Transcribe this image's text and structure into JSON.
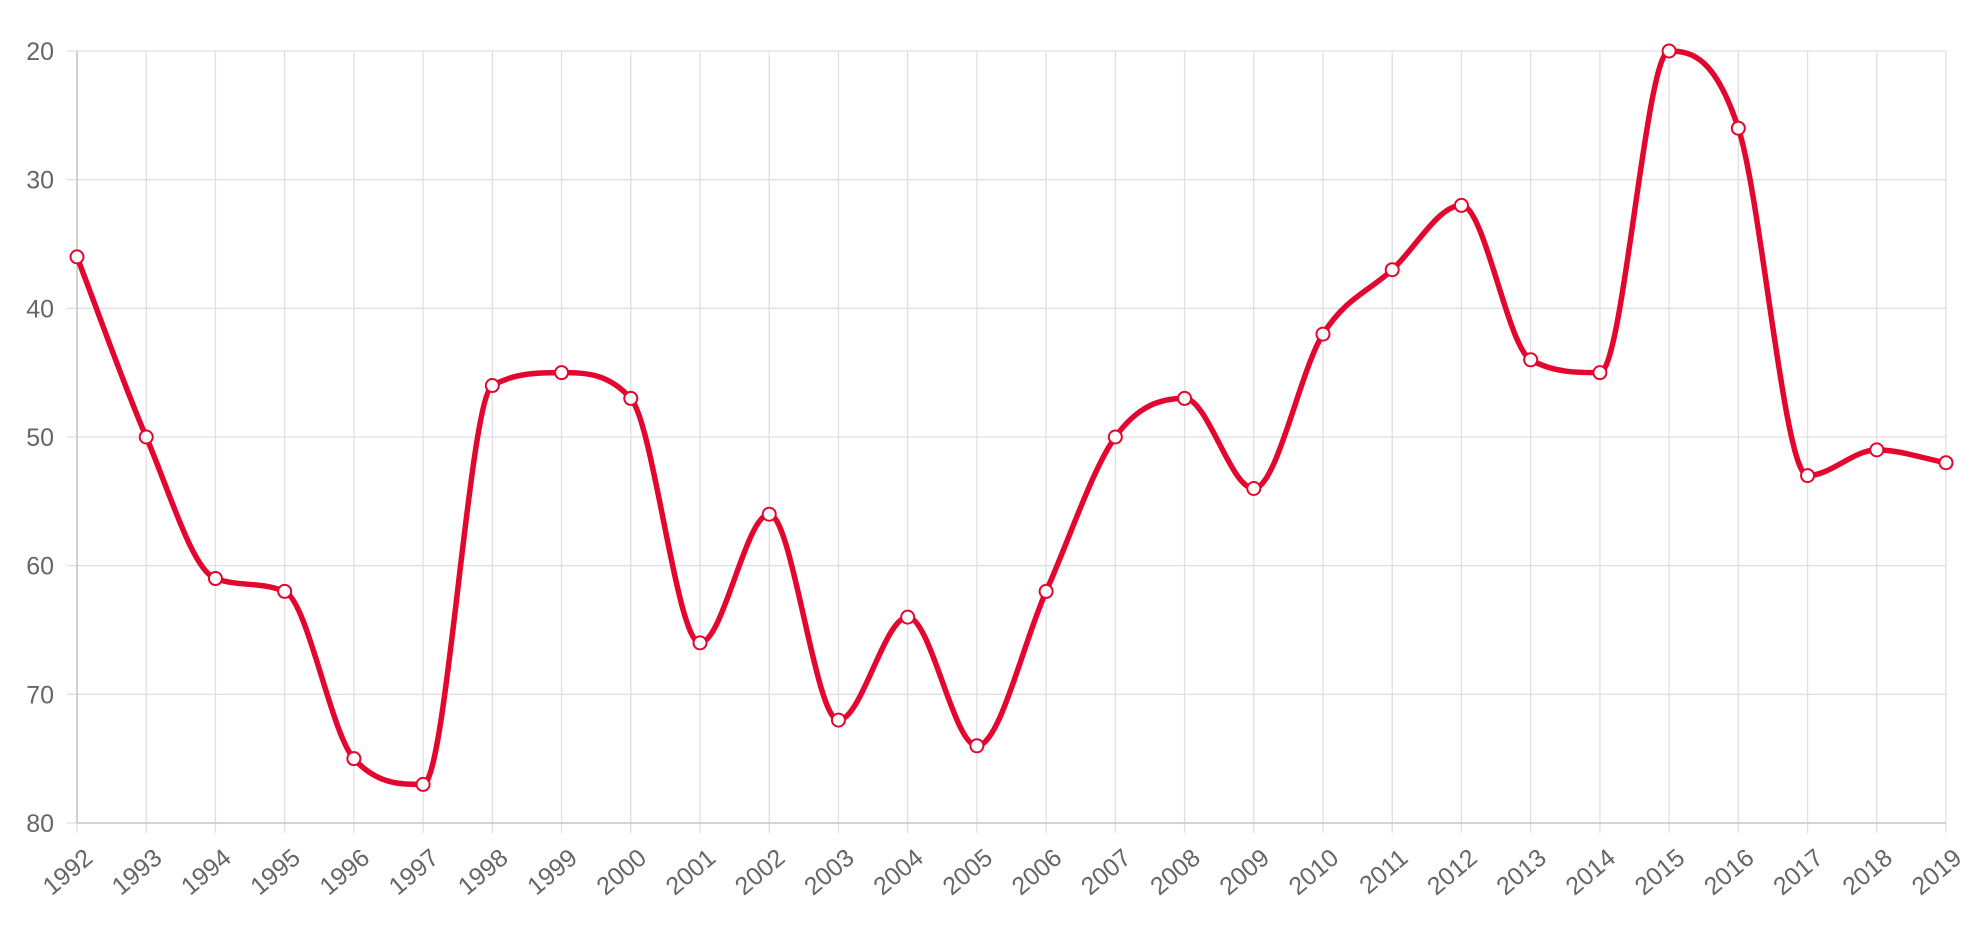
{
  "chart_data": {
    "type": "line",
    "title": "",
    "xlabel": "",
    "ylabel": "",
    "y_axis_reversed": true,
    "ylim": [
      20,
      80
    ],
    "yticks": [
      20,
      30,
      40,
      50,
      60,
      70,
      80
    ],
    "categories": [
      "1992",
      "1993",
      "1994",
      "1995",
      "1996",
      "1997",
      "1998",
      "1999",
      "2000",
      "2001",
      "2002",
      "2003",
      "2004",
      "2005",
      "2006",
      "2007",
      "2008",
      "2009",
      "2010",
      "2011",
      "2012",
      "2013",
      "2014",
      "2015",
      "2016",
      "2017",
      "2018",
      "2019"
    ],
    "series": [
      {
        "values": [
          36,
          50,
          61,
          62,
          75,
          77,
          46,
          45,
          47,
          66,
          56,
          72,
          64,
          74,
          62,
          50,
          47,
          54,
          42,
          37,
          32,
          44,
          45,
          20,
          26,
          53,
          51,
          52
        ],
        "color": "#e3062f"
      }
    ],
    "grid": true,
    "legend": "none",
    "colors": {
      "line": "#e3062f",
      "grid": "#e0e0e0",
      "axis": "#c8c8c8",
      "tick_label": "#666666"
    }
  }
}
